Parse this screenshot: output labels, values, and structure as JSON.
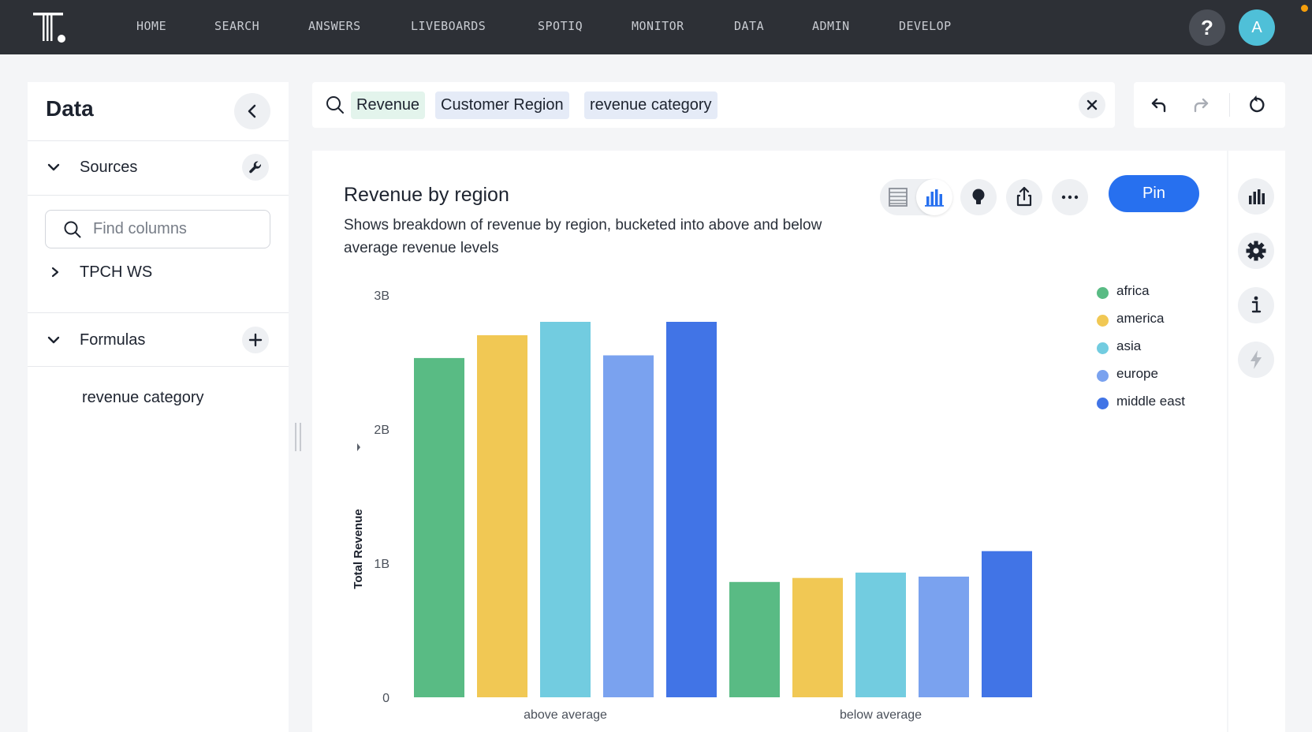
{
  "nav": {
    "items": [
      "HOME",
      "SEARCH",
      "ANSWERS",
      "LIVEBOARDS",
      "SPOTIQ",
      "MONITOR",
      "DATA",
      "ADMIN",
      "DEVELOP"
    ],
    "help_label": "?",
    "avatar_initial": "A"
  },
  "left_panel": {
    "title": "Data",
    "sources_label": "Sources",
    "find_placeholder": "Find columns",
    "source_name": "TPCH WS",
    "formulas_label": "Formulas",
    "formula_item": "revenue category"
  },
  "search": {
    "tokens": [
      {
        "label": "Revenue",
        "kind": "measure"
      },
      {
        "label": "Customer Region",
        "kind": "attribute"
      },
      {
        "label": "revenue category",
        "kind": "attribute"
      }
    ]
  },
  "answer": {
    "title": "Revenue by region",
    "description": "Shows breakdown of revenue by region, bucketed into above and below average revenue levels",
    "pin_label": "Pin"
  },
  "chart_data": {
    "type": "bar",
    "ylabel": "Total Revenue",
    "yticks": [
      "0",
      "1B",
      "2B",
      "3B"
    ],
    "ylim": [
      0,
      3000000000
    ],
    "categories": [
      "above average",
      "below average"
    ],
    "series": [
      {
        "name": "africa",
        "color": "#59bb84",
        "values": [
          2530000000,
          860000000
        ]
      },
      {
        "name": "america",
        "color": "#f1c854",
        "values": [
          2700000000,
          890000000
        ]
      },
      {
        "name": "asia",
        "color": "#72cce0",
        "values": [
          2800000000,
          930000000
        ]
      },
      {
        "name": "europe",
        "color": "#7aa2ef",
        "values": [
          2550000000,
          900000000
        ]
      },
      {
        "name": "middle east",
        "color": "#4174e6",
        "values": [
          2800000000,
          1090000000
        ]
      }
    ],
    "legend_position": "top-right",
    "grid": false
  },
  "colors": {
    "nav_bg": "#2d3036",
    "accent": "#2770ef"
  }
}
